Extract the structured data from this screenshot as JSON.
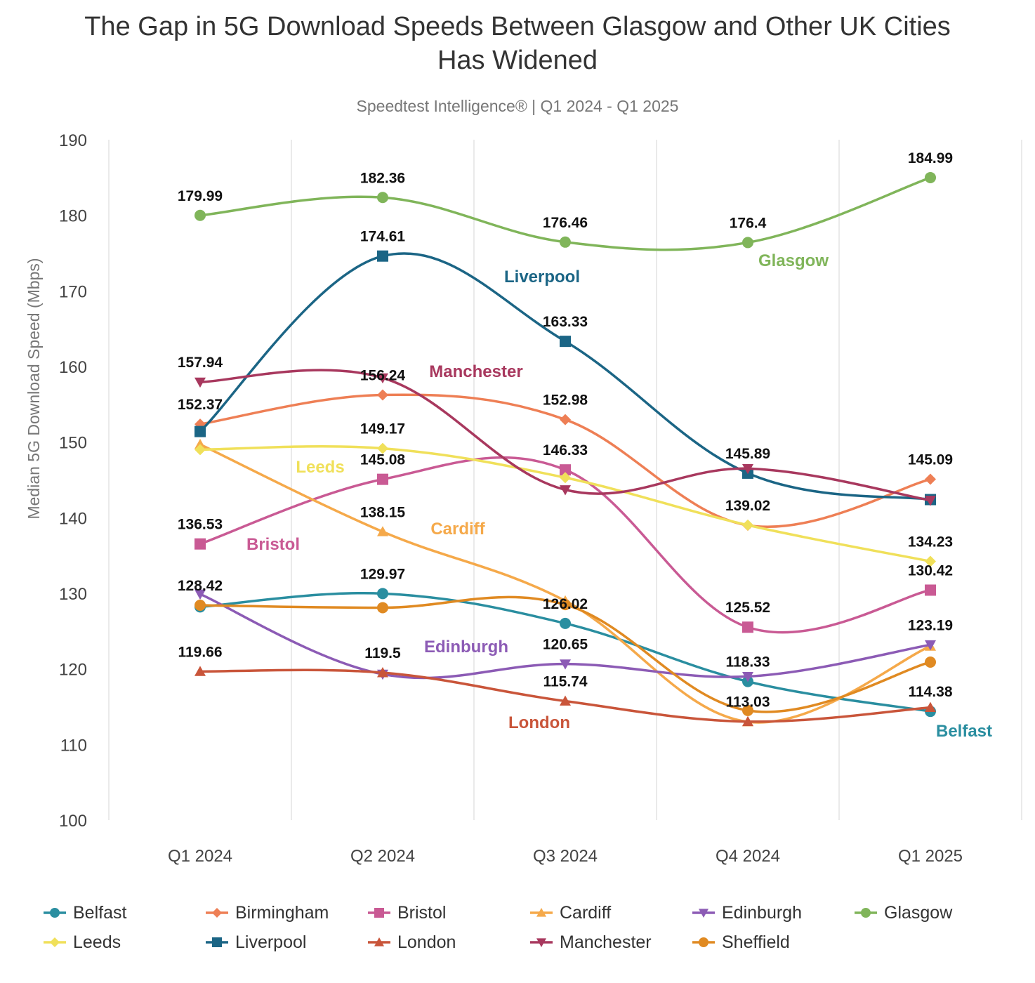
{
  "title": "The Gap in 5G Download Speeds Between Glasgow and Other UK Cities Has Widened",
  "title_line1": "The Gap in 5G Download Speeds Between Glasgow and Other UK Cities",
  "title_line2": "Has Widened",
  "subtitle": "Speedtest Intelligence® | Q1 2024 - Q1 2025",
  "chart_data": {
    "type": "line",
    "title": "The Gap in 5G Download Speeds Between Glasgow and Other UK Cities Has Widened",
    "subtitle": "Speedtest Intelligence® | Q1 2024 - Q1 2025",
    "xlabel": "",
    "ylabel": "Median 5G Download Speed (Mbps)",
    "ylim": [
      100,
      190
    ],
    "yticks": [
      100,
      110,
      120,
      130,
      140,
      150,
      160,
      170,
      180,
      190
    ],
    "grid": "vertical",
    "legend_position": "bottom",
    "categories": [
      "Q1 2024",
      "Q2 2024",
      "Q3 2024",
      "Q4 2024",
      "Q1 2025"
    ],
    "series": [
      {
        "name": "Belfast",
        "color": "#2a8ea0",
        "marker": "circle",
        "values": [
          128.2,
          129.97,
          126.02,
          118.33,
          114.38
        ],
        "labels": [
          null,
          "129.97",
          "126.02",
          "118.33",
          "114.38"
        ]
      },
      {
        "name": "Birmingham",
        "color": "#ee7f55",
        "marker": "diamond",
        "values": [
          152.37,
          156.24,
          152.98,
          139.0,
          145.09
        ],
        "labels": [
          "152.37",
          "156.24",
          "152.98",
          null,
          "145.09"
        ]
      },
      {
        "name": "Bristol",
        "color": "#c95a94",
        "marker": "square",
        "values": [
          136.53,
          145.08,
          146.33,
          125.52,
          130.42
        ],
        "labels": [
          "136.53",
          "145.08",
          "146.33",
          "125.52",
          "130.42"
        ]
      },
      {
        "name": "Cardiff",
        "color": "#f5a94a",
        "marker": "triangle-up",
        "values": [
          149.7,
          138.15,
          129.0,
          113.0,
          123.0
        ],
        "labels": [
          null,
          "138.15",
          null,
          null,
          null
        ]
      },
      {
        "name": "Edinburgh",
        "color": "#8c5bb5",
        "marker": "triangle-down",
        "values": [
          129.9,
          119.3,
          120.65,
          119.0,
          123.19
        ],
        "labels": [
          null,
          null,
          "120.65",
          null,
          "123.19"
        ]
      },
      {
        "name": "Glasgow",
        "color": "#80b55a",
        "marker": "circle",
        "values": [
          179.99,
          182.36,
          176.46,
          176.4,
          184.99
        ],
        "labels": [
          "179.99",
          "182.36",
          "176.46",
          "176.4",
          "184.99"
        ]
      },
      {
        "name": "Leeds",
        "color": "#f0e05a",
        "marker": "diamond",
        "values": [
          149.0,
          149.17,
          145.3,
          139.02,
          134.23
        ],
        "labels": [
          null,
          "149.17",
          null,
          "139.02",
          "134.23"
        ]
      },
      {
        "name": "Liverpool",
        "color": "#1b6585",
        "marker": "square",
        "values": [
          151.4,
          174.61,
          163.33,
          145.89,
          142.4
        ],
        "labels": [
          null,
          "174.61",
          "163.33",
          "145.89",
          null
        ]
      },
      {
        "name": "London",
        "color": "#c9553a",
        "marker": "triangle-up",
        "values": [
          119.66,
          119.5,
          115.74,
          113.03,
          114.9
        ],
        "labels": [
          "119.66",
          "119.5",
          "115.74",
          "113.03",
          null
        ]
      },
      {
        "name": "Manchester",
        "color": "#a8385e",
        "marker": "triangle-down",
        "values": [
          157.94,
          158.5,
          143.7,
          146.5,
          142.3
        ],
        "labels": [
          "157.94",
          null,
          null,
          null,
          null
        ]
      },
      {
        "name": "Sheffield",
        "color": "#e08a22",
        "marker": "circle",
        "values": [
          128.42,
          128.1,
          128.5,
          114.5,
          120.9
        ],
        "labels": [
          "128.42",
          null,
          null,
          null,
          null
        ]
      }
    ],
    "line_annotations": [
      {
        "text": "Glasgow",
        "series": "Glasgow",
        "near": "Q4 2024"
      },
      {
        "text": "Liverpool",
        "series": "Liverpool",
        "near": "Q2-Q3 2024"
      },
      {
        "text": "Manchester",
        "series": "Manchester",
        "near": "Q2-Q3 2024"
      },
      {
        "text": "Leeds",
        "series": "Leeds",
        "near": "Q1-Q2 2024"
      },
      {
        "text": "Cardiff",
        "series": "Cardiff",
        "near": "Q2-Q3 2024"
      },
      {
        "text": "Bristol",
        "series": "Bristol",
        "near": "Q1-Q2 2024"
      },
      {
        "text": "Edinburgh",
        "series": "Edinburgh",
        "near": "Q2-Q3 2024"
      },
      {
        "text": "London",
        "series": "London",
        "near": "Q3 2024"
      },
      {
        "text": "Belfast",
        "series": "Belfast",
        "near": "Q1 2025"
      }
    ]
  },
  "legend": {
    "items": [
      "Belfast",
      "Birmingham",
      "Bristol",
      "Cardiff",
      "Edinburgh",
      "Glasgow",
      "Leeds",
      "Liverpool",
      "London",
      "Manchester",
      "Sheffield"
    ]
  }
}
